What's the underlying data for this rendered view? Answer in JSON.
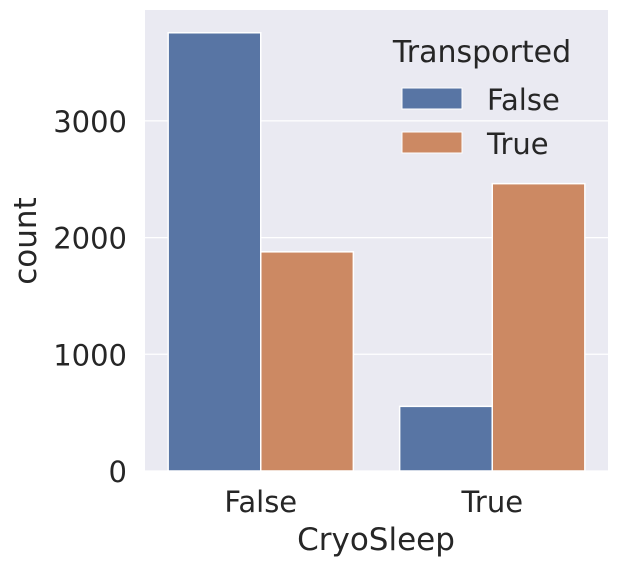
{
  "chart_data": {
    "type": "bar",
    "title": "",
    "xlabel": "CryoSleep",
    "ylabel": "count",
    "categories": [
      "False",
      "True"
    ],
    "series": [
      {
        "name": "False",
        "color": "#5875a4",
        "values": [
          3755,
          554
        ]
      },
      {
        "name": "True",
        "color": "#cc8963",
        "values": [
          1878,
          2462
        ]
      }
    ],
    "ylim": [
      0,
      3950
    ],
    "yticks": [
      0,
      1000,
      2000,
      3000
    ],
    "ytick_labels": [
      "0",
      "1000",
      "2000",
      "3000"
    ],
    "grid": true,
    "legend": {
      "title": "Transported",
      "placement": "top-right",
      "entries": [
        "False",
        "True"
      ]
    },
    "colors": {
      "plot_background": "#eaeaf2",
      "grid": "#ffffff",
      "text": "#262626"
    }
  }
}
